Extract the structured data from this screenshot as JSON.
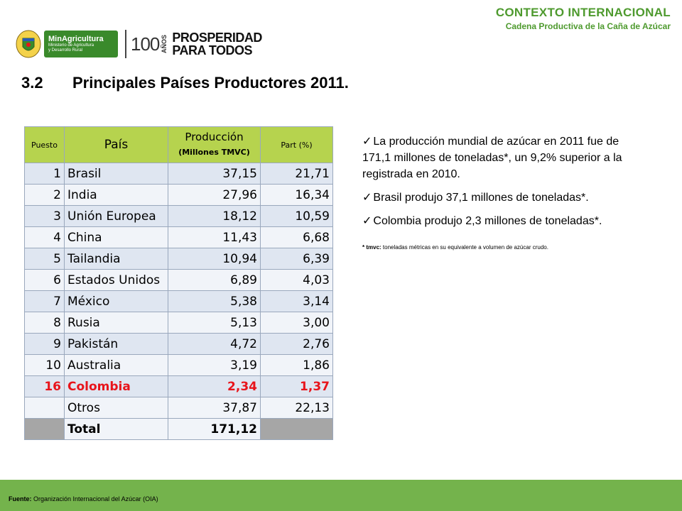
{
  "header": {
    "title": "CONTEXTO INTERNACIONAL",
    "subtitle": "Cadena Productiva de la Caña de Azúcar"
  },
  "logos": {
    "ministry_line1": "MinAgricultura",
    "ministry_line2": "Ministerio de Agricultura",
    "ministry_line3": "y Desarrollo Rural",
    "anos_number": "100",
    "anos_text": "AÑOS",
    "prosperidad_line1": "PROSPERIDAD",
    "prosperidad_line2": "PARA TODOS",
    "brand_green": "#3a8a2b"
  },
  "section": {
    "number": "3.2",
    "title": "Principales Países Productores 2011."
  },
  "table": {
    "headers": {
      "puesto": "Puesto",
      "pais": "País",
      "produccion": "Producción",
      "produccion_unit": "(Millones TMVC)",
      "part": "Part (%)"
    },
    "rows": [
      {
        "puesto": "1",
        "pais": "Brasil",
        "produccion": "37,15",
        "part": "21,71"
      },
      {
        "puesto": "2",
        "pais": "India",
        "produccion": "27,96",
        "part": "16,34"
      },
      {
        "puesto": "3",
        "pais": "Unión Europea",
        "produccion": "18,12",
        "part": "10,59"
      },
      {
        "puesto": "4",
        "pais": "China",
        "produccion": "11,43",
        "part": "6,68"
      },
      {
        "puesto": "5",
        "pais": "Tailandia",
        "produccion": "10,94",
        "part": "6,39"
      },
      {
        "puesto": "6",
        "pais": "Estados Unidos",
        "produccion": "6,89",
        "part": "4,03"
      },
      {
        "puesto": "7",
        "pais": "México",
        "produccion": "5,38",
        "part": "3,14"
      },
      {
        "puesto": "8",
        "pais": "Rusia",
        "produccion": "5,13",
        "part": "3,00"
      },
      {
        "puesto": "9",
        "pais": "Pakistán",
        "produccion": "4,72",
        "part": "2,76"
      },
      {
        "puesto": "10",
        "pais": "Australia",
        "produccion": "3,19",
        "part": "1,86"
      },
      {
        "puesto": "16",
        "pais": "Colombia",
        "produccion": "2,34",
        "part": "1,37"
      },
      {
        "puesto": "",
        "pais": "Otros",
        "produccion": "37,87",
        "part": "22,13"
      }
    ],
    "total": {
      "label": "Total",
      "produccion": "171,12"
    },
    "header_color": "#b6d34e",
    "highlight_color": "#e8141b"
  },
  "bullets": [
    "La producción mundial de azúcar en 2011 fue de 171,1 millones de toneladas*, un 9,2% superior a la registrada en 2010.",
    "Brasil produjo 37,1 millones de toneladas*.",
    "Colombia produjo 2,3 millones de toneladas*."
  ],
  "note": {
    "label": "* tmvc:",
    "text": "toneladas métricas en su equivalente a volumen de azúcar crudo."
  },
  "footer": {
    "label": "Fuente:",
    "text": "Organización Internacional del Azúcar (OIA)",
    "color": "#74b34c"
  }
}
